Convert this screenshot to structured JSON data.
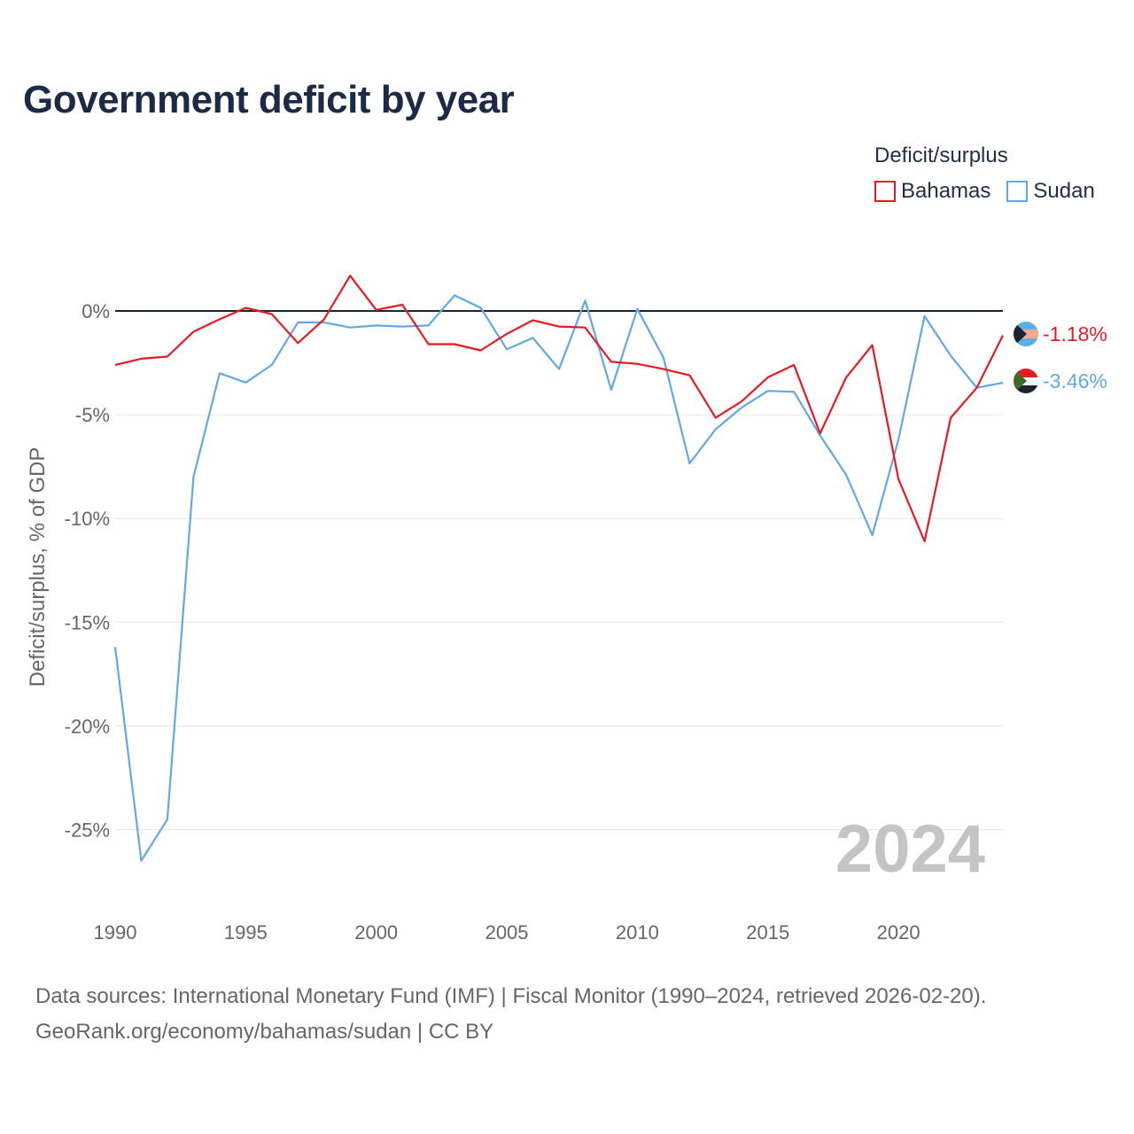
{
  "chart_data": {
    "type": "line",
    "title": "Government deficit by year",
    "xlabel": "",
    "ylabel": "Deficit/surplus, % of GDP",
    "xlim": [
      1990,
      2024
    ],
    "ylim": [
      -27,
      2.5
    ],
    "xticks": [
      1990,
      1995,
      2000,
      2005,
      2010,
      2015,
      2020
    ],
    "yticks": [
      0,
      -5,
      -10,
      -15,
      -20,
      -25
    ],
    "ytick_labels": [
      "0%",
      "-5%",
      "-10%",
      "-15%",
      "-20%",
      "-25%"
    ],
    "xtick_labels": [
      "1990",
      "1995",
      "2000",
      "2005",
      "2010",
      "2015",
      "2020"
    ],
    "legend_title": "Deficit/surplus",
    "legend_position": "top-right",
    "watermark_year": "2024",
    "x": [
      1990,
      1991,
      1992,
      1993,
      1994,
      1995,
      1996,
      1997,
      1998,
      1999,
      2000,
      2001,
      2002,
      2003,
      2004,
      2005,
      2006,
      2007,
      2008,
      2009,
      2010,
      2011,
      2012,
      2013,
      2014,
      2015,
      2016,
      2017,
      2018,
      2019,
      2020,
      2021,
      2022,
      2023,
      2024
    ],
    "series": [
      {
        "name": "Bahamas",
        "color": "#e31b23",
        "end_label": "-1.18%",
        "flag_icon": "bahamas-flag-icon",
        "values": [
          -2.6,
          -2.3,
          -2.2,
          -1.0,
          -0.4,
          0.15,
          -0.15,
          -1.55,
          -0.4,
          1.7,
          0.05,
          0.3,
          -1.6,
          -1.6,
          -1.9,
          -1.1,
          -0.45,
          -0.75,
          -0.8,
          -2.45,
          -2.55,
          -2.8,
          -3.1,
          -5.15,
          -4.35,
          -3.2,
          -2.6,
          -5.9,
          -3.2,
          -1.65,
          -8.1,
          -11.1,
          -5.15,
          -3.7,
          -1.18
        ]
      },
      {
        "name": "Sudan",
        "color": "#62a8e5",
        "end_label": "-3.46%",
        "flag_icon": "sudan-flag-icon",
        "values": [
          -16.2,
          -26.5,
          -24.5,
          -8.0,
          -3.0,
          -3.45,
          -2.6,
          -0.55,
          -0.55,
          -0.8,
          -0.7,
          -0.75,
          -0.7,
          0.75,
          0.15,
          -1.85,
          -1.3,
          -2.8,
          0.5,
          -3.8,
          0.1,
          -2.25,
          -7.35,
          -5.7,
          -4.65,
          -3.85,
          -3.9,
          -6.0,
          -7.9,
          -10.8,
          -6.2,
          -0.25,
          -2.15,
          -3.7,
          -3.46
        ]
      }
    ]
  },
  "footer": {
    "line1": "Data sources: International Monetary Fund (IMF) | Fiscal Monitor (1990–2024, retrieved 2026-02-20).",
    "line2": "GeoRank.org/economy/bahamas/sudan | CC BY"
  }
}
